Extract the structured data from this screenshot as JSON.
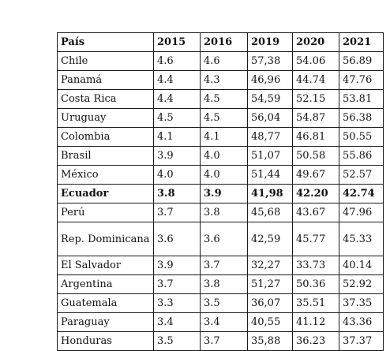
{
  "table": {
    "headers": [
      "País",
      "2015",
      "2016",
      "2019",
      "2020",
      "2021"
    ],
    "rows": [
      {
        "country": "Chile",
        "values": [
          "4.6",
          "4.6",
          "57,38",
          "54.06",
          "56.89"
        ]
      },
      {
        "country": "Panamá",
        "values": [
          "4.4",
          "4.3",
          "46,96",
          "44.74",
          "47.76"
        ]
      },
      {
        "country": "Costa Rica",
        "values": [
          "4.4",
          "4.5",
          "54,59",
          "52.15",
          "53.81"
        ]
      },
      {
        "country": "Uruguay",
        "values": [
          "4.5",
          "4.5",
          "56,04",
          "54.87",
          "56.38"
        ]
      },
      {
        "country": "Colombia",
        "values": [
          "4.1",
          "4.1",
          "48,77",
          "46.81",
          "50.55"
        ]
      },
      {
        "country": "Brasil",
        "values": [
          "3.9",
          "4.0",
          "51,07",
          "50.58",
          "55.86"
        ]
      },
      {
        "country": "México",
        "values": [
          "4.0",
          "4.0",
          "51,44",
          "49.67",
          "52.57"
        ]
      },
      {
        "country": "Ecuador",
        "values": [
          "3.8",
          "3.9",
          "41,98",
          "42.20",
          "42.74"
        ],
        "highlight": true
      },
      {
        "country": "Perú",
        "values": [
          "3.7",
          "3.8",
          "45,68",
          "43.67",
          "47.96"
        ]
      },
      {
        "country": "Rep. Dominicana",
        "values": [
          "3.6",
          "3.6",
          "42,59",
          "45.77",
          "45.33"
        ],
        "tall": true
      },
      {
        "country": "El Salvador",
        "values": [
          "3.9",
          "3.7",
          "32,27",
          "33.73",
          "40.14"
        ]
      },
      {
        "country": "Argentina",
        "values": [
          "3.7",
          "3.8",
          "51,27",
          "50.36",
          "52.92"
        ]
      },
      {
        "country": "Guatemala",
        "values": [
          "3.3",
          "3.5",
          "36,07",
          "35.51",
          "37.35"
        ]
      },
      {
        "country": "Paraguay",
        "values": [
          "3.4",
          "3.4",
          "40,55",
          "41.12",
          "43.36"
        ]
      },
      {
        "country": "Honduras",
        "values": [
          "3.5",
          "3.7",
          "35,88",
          "36.23",
          "37.37"
        ]
      }
    ]
  }
}
